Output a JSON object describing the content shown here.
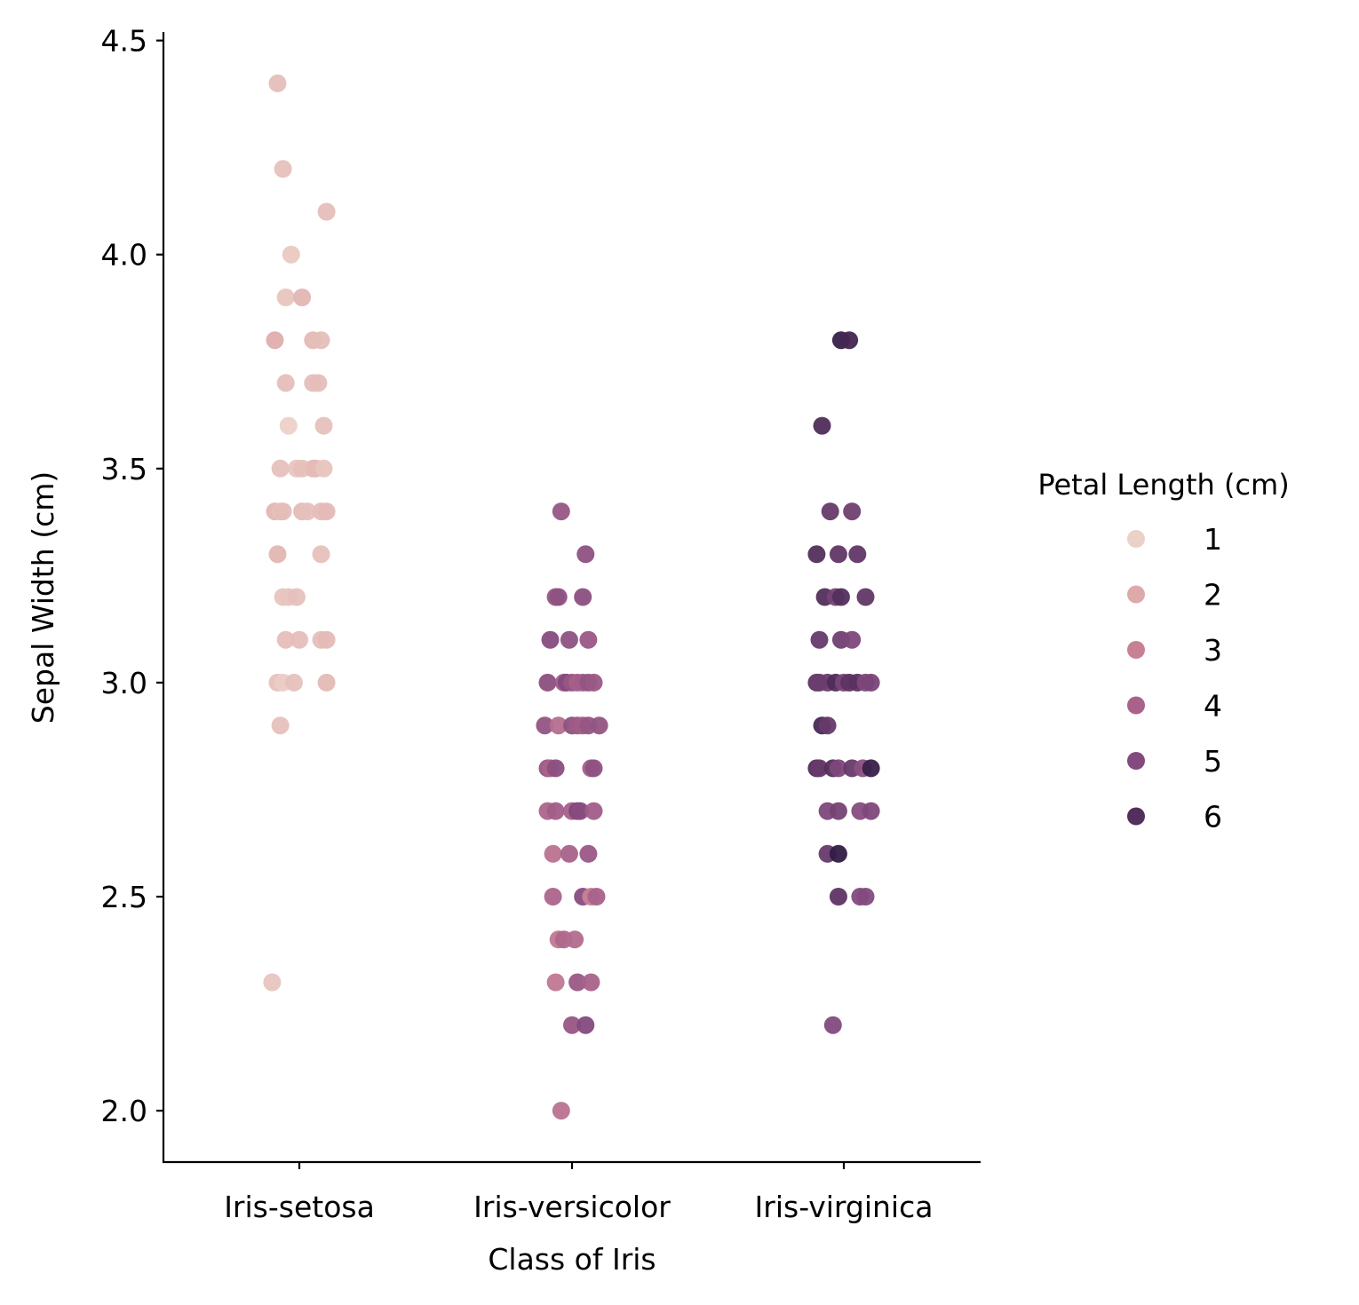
{
  "chart_data": {
    "type": "scatter",
    "subtype": "strip",
    "xlabel": "Class of Iris",
    "ylabel": "Sepal Width (cm)",
    "categories": [
      "Iris-setosa",
      "Iris-versicolor",
      "Iris-virginica"
    ],
    "ylim": [
      1.88,
      4.52
    ],
    "yticks": [
      2.0,
      2.5,
      3.0,
      3.5,
      4.0,
      4.5
    ],
    "ytick_labels": [
      "2.0",
      "2.5",
      "3.0",
      "3.5",
      "4.0",
      "4.5"
    ],
    "grid": false,
    "legend": {
      "title": "Petal Length (cm)",
      "placement": "right",
      "entries": [
        {
          "label": "1",
          "value": 1,
          "color": "#ecd1c8"
        },
        {
          "label": "2",
          "value": 2,
          "color": "#deaaa9"
        },
        {
          "label": "3",
          "value": 3,
          "color": "#c88194"
        },
        {
          "label": "4",
          "value": 4,
          "color": "#a9628a"
        },
        {
          "label": "5",
          "value": 5,
          "color": "#834a7e"
        },
        {
          "label": "6",
          "value": 6,
          "color": "#532f5c"
        }
      ]
    },
    "hue_range": [
      1.0,
      6.9
    ],
    "points": [
      {
        "category": "Iris-setosa",
        "y": 4.4,
        "hue": 1.5,
        "jitter": -0.08
      },
      {
        "category": "Iris-setosa",
        "y": 4.2,
        "hue": 1.4,
        "jitter": -0.06
      },
      {
        "category": "Iris-setosa",
        "y": 4.1,
        "hue": 1.5,
        "jitter": 0.1
      },
      {
        "category": "Iris-setosa",
        "y": 4.0,
        "hue": 1.2,
        "jitter": -0.03
      },
      {
        "category": "Iris-setosa",
        "y": 3.9,
        "hue": 1.3,
        "jitter": -0.05
      },
      {
        "category": "Iris-setosa",
        "y": 3.9,
        "hue": 1.7,
        "jitter": 0.01
      },
      {
        "category": "Iris-setosa",
        "y": 3.8,
        "hue": 1.9,
        "jitter": -0.09
      },
      {
        "category": "Iris-setosa",
        "y": 3.8,
        "hue": 1.6,
        "jitter": 0.05
      },
      {
        "category": "Iris-setosa",
        "y": 3.8,
        "hue": 1.5,
        "jitter": 0.08
      },
      {
        "category": "Iris-setosa",
        "y": 3.7,
        "hue": 1.5,
        "jitter": -0.05
      },
      {
        "category": "Iris-setosa",
        "y": 3.7,
        "hue": 1.5,
        "jitter": 0.05
      },
      {
        "category": "Iris-setosa",
        "y": 3.7,
        "hue": 1.5,
        "jitter": 0.07
      },
      {
        "category": "Iris-setosa",
        "y": 3.6,
        "hue": 1.0,
        "jitter": -0.04
      },
      {
        "category": "Iris-setosa",
        "y": 3.6,
        "hue": 1.4,
        "jitter": 0.09
      },
      {
        "category": "Iris-setosa",
        "y": 3.5,
        "hue": 1.4,
        "jitter": -0.07
      },
      {
        "category": "Iris-setosa",
        "y": 3.5,
        "hue": 1.3,
        "jitter": -0.01
      },
      {
        "category": "Iris-setosa",
        "y": 3.5,
        "hue": 1.4,
        "jitter": 0.01
      },
      {
        "category": "Iris-setosa",
        "y": 3.5,
        "hue": 1.5,
        "jitter": 0.05
      },
      {
        "category": "Iris-setosa",
        "y": 3.5,
        "hue": 1.6,
        "jitter": 0.06
      },
      {
        "category": "Iris-setosa",
        "y": 3.5,
        "hue": 1.3,
        "jitter": 0.09
      },
      {
        "category": "Iris-setosa",
        "y": 3.4,
        "hue": 1.7,
        "jitter": -0.09
      },
      {
        "category": "Iris-setosa",
        "y": 3.4,
        "hue": 1.4,
        "jitter": -0.07
      },
      {
        "category": "Iris-setosa",
        "y": 3.4,
        "hue": 1.5,
        "jitter": -0.06
      },
      {
        "category": "Iris-setosa",
        "y": 3.4,
        "hue": 1.6,
        "jitter": 0.01
      },
      {
        "category": "Iris-setosa",
        "y": 3.4,
        "hue": 1.4,
        "jitter": 0.03
      },
      {
        "category": "Iris-setosa",
        "y": 3.4,
        "hue": 1.5,
        "jitter": 0.08
      },
      {
        "category": "Iris-setosa",
        "y": 3.4,
        "hue": 1.6,
        "jitter": 0.1
      },
      {
        "category": "Iris-setosa",
        "y": 3.3,
        "hue": 1.7,
        "jitter": -0.08
      },
      {
        "category": "Iris-setosa",
        "y": 3.3,
        "hue": 1.4,
        "jitter": 0.08
      },
      {
        "category": "Iris-setosa",
        "y": 3.2,
        "hue": 1.3,
        "jitter": -0.06
      },
      {
        "category": "Iris-setosa",
        "y": 3.2,
        "hue": 1.3,
        "jitter": -0.04
      },
      {
        "category": "Iris-setosa",
        "y": 3.2,
        "hue": 1.4,
        "jitter": -0.01
      },
      {
        "category": "Iris-setosa",
        "y": 3.1,
        "hue": 1.5,
        "jitter": -0.05
      },
      {
        "category": "Iris-setosa",
        "y": 3.1,
        "hue": 1.5,
        "jitter": 0.0
      },
      {
        "category": "Iris-setosa",
        "y": 3.1,
        "hue": 1.5,
        "jitter": 0.08
      },
      {
        "category": "Iris-setosa",
        "y": 3.1,
        "hue": 1.6,
        "jitter": 0.1
      },
      {
        "category": "Iris-setosa",
        "y": 3.0,
        "hue": 1.4,
        "jitter": -0.08
      },
      {
        "category": "Iris-setosa",
        "y": 3.0,
        "hue": 1.1,
        "jitter": -0.06
      },
      {
        "category": "Iris-setosa",
        "y": 3.0,
        "hue": 1.4,
        "jitter": -0.02
      },
      {
        "category": "Iris-setosa",
        "y": 3.0,
        "hue": 1.6,
        "jitter": 0.1
      },
      {
        "category": "Iris-setosa",
        "y": 2.9,
        "hue": 1.4,
        "jitter": -0.07
      },
      {
        "category": "Iris-setosa",
        "y": 2.3,
        "hue": 1.3,
        "jitter": -0.1
      },
      {
        "category": "Iris-versicolor",
        "y": 3.4,
        "hue": 4.5,
        "jitter": -0.04
      },
      {
        "category": "Iris-versicolor",
        "y": 3.3,
        "hue": 4.7,
        "jitter": 0.05
      },
      {
        "category": "Iris-versicolor",
        "y": 3.2,
        "hue": 4.5,
        "jitter": -0.06
      },
      {
        "category": "Iris-versicolor",
        "y": 3.2,
        "hue": 4.7,
        "jitter": -0.05
      },
      {
        "category": "Iris-versicolor",
        "y": 3.2,
        "hue": 4.8,
        "jitter": 0.04
      },
      {
        "category": "Iris-versicolor",
        "y": 3.1,
        "hue": 4.9,
        "jitter": -0.08
      },
      {
        "category": "Iris-versicolor",
        "y": 3.1,
        "hue": 4.7,
        "jitter": -0.01
      },
      {
        "category": "Iris-versicolor",
        "y": 3.1,
        "hue": 4.4,
        "jitter": 0.06
      },
      {
        "category": "Iris-versicolor",
        "y": 3.0,
        "hue": 4.8,
        "jitter": -0.09
      },
      {
        "category": "Iris-versicolor",
        "y": 3.0,
        "hue": 4.2,
        "jitter": -0.03
      },
      {
        "category": "Iris-versicolor",
        "y": 3.0,
        "hue": 5.0,
        "jitter": -0.02
      },
      {
        "category": "Iris-versicolor",
        "y": 3.0,
        "hue": 4.5,
        "jitter": 0.0
      },
      {
        "category": "Iris-versicolor",
        "y": 3.0,
        "hue": 4.1,
        "jitter": 0.02
      },
      {
        "category": "Iris-versicolor",
        "y": 3.0,
        "hue": 4.2,
        "jitter": 0.04
      },
      {
        "category": "Iris-versicolor",
        "y": 3.0,
        "hue": 4.6,
        "jitter": 0.06
      },
      {
        "category": "Iris-versicolor",
        "y": 3.0,
        "hue": 4.4,
        "jitter": 0.08
      },
      {
        "category": "Iris-versicolor",
        "y": 2.9,
        "hue": 4.6,
        "jitter": -0.1
      },
      {
        "category": "Iris-versicolor",
        "y": 2.9,
        "hue": 3.6,
        "jitter": -0.05
      },
      {
        "category": "Iris-versicolor",
        "y": 2.9,
        "hue": 4.7,
        "jitter": 0.0
      },
      {
        "category": "Iris-versicolor",
        "y": 2.9,
        "hue": 4.3,
        "jitter": 0.02
      },
      {
        "category": "Iris-versicolor",
        "y": 2.9,
        "hue": 4.2,
        "jitter": 0.04
      },
      {
        "category": "Iris-versicolor",
        "y": 2.9,
        "hue": 4.5,
        "jitter": 0.06
      },
      {
        "category": "Iris-versicolor",
        "y": 2.9,
        "hue": 4.6,
        "jitter": 0.1
      },
      {
        "category": "Iris-versicolor",
        "y": 2.8,
        "hue": 4.6,
        "jitter": -0.09
      },
      {
        "category": "Iris-versicolor",
        "y": 2.8,
        "hue": 4.0,
        "jitter": -0.08
      },
      {
        "category": "Iris-versicolor",
        "y": 2.8,
        "hue": 4.8,
        "jitter": -0.06
      },
      {
        "category": "Iris-versicolor",
        "y": 2.8,
        "hue": 4.1,
        "jitter": 0.07
      },
      {
        "category": "Iris-versicolor",
        "y": 2.8,
        "hue": 4.7,
        "jitter": 0.08
      },
      {
        "category": "Iris-versicolor",
        "y": 2.7,
        "hue": 3.9,
        "jitter": -0.09
      },
      {
        "category": "Iris-versicolor",
        "y": 2.7,
        "hue": 4.2,
        "jitter": -0.06
      },
      {
        "category": "Iris-versicolor",
        "y": 2.7,
        "hue": 4.1,
        "jitter": 0.0
      },
      {
        "category": "Iris-versicolor",
        "y": 2.7,
        "hue": 5.1,
        "jitter": 0.02
      },
      {
        "category": "Iris-versicolor",
        "y": 2.7,
        "hue": 4.9,
        "jitter": 0.03
      },
      {
        "category": "Iris-versicolor",
        "y": 2.7,
        "hue": 4.2,
        "jitter": 0.08
      },
      {
        "category": "Iris-versicolor",
        "y": 2.6,
        "hue": 3.5,
        "jitter": -0.07
      },
      {
        "category": "Iris-versicolor",
        "y": 2.6,
        "hue": 4.0,
        "jitter": -0.01
      },
      {
        "category": "Iris-versicolor",
        "y": 2.6,
        "hue": 4.4,
        "jitter": 0.06
      },
      {
        "category": "Iris-versicolor",
        "y": 2.5,
        "hue": 3.9,
        "jitter": -0.07
      },
      {
        "category": "Iris-versicolor",
        "y": 2.5,
        "hue": 4.9,
        "jitter": 0.04
      },
      {
        "category": "Iris-versicolor",
        "y": 2.5,
        "hue": 3.0,
        "jitter": 0.07
      },
      {
        "category": "Iris-versicolor",
        "y": 2.5,
        "hue": 4.0,
        "jitter": 0.09
      },
      {
        "category": "Iris-versicolor",
        "y": 2.4,
        "hue": 3.3,
        "jitter": -0.05
      },
      {
        "category": "Iris-versicolor",
        "y": 2.4,
        "hue": 3.8,
        "jitter": -0.03
      },
      {
        "category": "Iris-versicolor",
        "y": 2.4,
        "hue": 3.7,
        "jitter": 0.01
      },
      {
        "category": "Iris-versicolor",
        "y": 2.3,
        "hue": 3.3,
        "jitter": -0.06
      },
      {
        "category": "Iris-versicolor",
        "y": 2.3,
        "hue": 4.4,
        "jitter": 0.02
      },
      {
        "category": "Iris-versicolor",
        "y": 2.3,
        "hue": 4.0,
        "jitter": 0.07
      },
      {
        "category": "Iris-versicolor",
        "y": 2.2,
        "hue": 4.5,
        "jitter": 0.0
      },
      {
        "category": "Iris-versicolor",
        "y": 2.2,
        "hue": 5.0,
        "jitter": 0.05
      },
      {
        "category": "Iris-versicolor",
        "y": 2.0,
        "hue": 3.5,
        "jitter": -0.04
      },
      {
        "category": "Iris-virginica",
        "y": 3.8,
        "hue": 6.7,
        "jitter": -0.01
      },
      {
        "category": "Iris-virginica",
        "y": 3.8,
        "hue": 6.4,
        "jitter": 0.02
      },
      {
        "category": "Iris-virginica",
        "y": 3.6,
        "hue": 6.1,
        "jitter": -0.08
      },
      {
        "category": "Iris-virginica",
        "y": 3.4,
        "hue": 5.6,
        "jitter": -0.05
      },
      {
        "category": "Iris-virginica",
        "y": 3.4,
        "hue": 5.4,
        "jitter": 0.03
      },
      {
        "category": "Iris-virginica",
        "y": 3.3,
        "hue": 6.0,
        "jitter": -0.1
      },
      {
        "category": "Iris-virginica",
        "y": 3.3,
        "hue": 5.7,
        "jitter": -0.02
      },
      {
        "category": "Iris-virginica",
        "y": 3.3,
        "hue": 5.7,
        "jitter": 0.05
      },
      {
        "category": "Iris-virginica",
        "y": 3.2,
        "hue": 6.0,
        "jitter": -0.07
      },
      {
        "category": "Iris-virginica",
        "y": 3.2,
        "hue": 5.3,
        "jitter": -0.03
      },
      {
        "category": "Iris-virginica",
        "y": 3.2,
        "hue": 6.0,
        "jitter": -0.01
      },
      {
        "category": "Iris-virginica",
        "y": 3.2,
        "hue": 5.7,
        "jitter": 0.08
      },
      {
        "category": "Iris-virginica",
        "y": 3.1,
        "hue": 5.6,
        "jitter": -0.09
      },
      {
        "category": "Iris-virginica",
        "y": 3.1,
        "hue": 5.4,
        "jitter": -0.01
      },
      {
        "category": "Iris-virginica",
        "y": 3.1,
        "hue": 5.1,
        "jitter": 0.03
      },
      {
        "category": "Iris-virginica",
        "y": 3.0,
        "hue": 5.8,
        "jitter": -0.1
      },
      {
        "category": "Iris-virginica",
        "y": 3.0,
        "hue": 5.5,
        "jitter": -0.09
      },
      {
        "category": "Iris-virginica",
        "y": 3.0,
        "hue": 5.5,
        "jitter": -0.06
      },
      {
        "category": "Iris-virginica",
        "y": 3.0,
        "hue": 6.1,
        "jitter": -0.03
      },
      {
        "category": "Iris-virginica",
        "y": 3.0,
        "hue": 5.2,
        "jitter": 0.0
      },
      {
        "category": "Iris-virginica",
        "y": 3.0,
        "hue": 5.8,
        "jitter": 0.02
      },
      {
        "category": "Iris-virginica",
        "y": 3.0,
        "hue": 5.9,
        "jitter": 0.05
      },
      {
        "category": "Iris-virginica",
        "y": 3.0,
        "hue": 5.1,
        "jitter": 0.08
      },
      {
        "category": "Iris-virginica",
        "y": 3.0,
        "hue": 5.2,
        "jitter": 0.1
      },
      {
        "category": "Iris-virginica",
        "y": 2.9,
        "hue": 6.3,
        "jitter": -0.08
      },
      {
        "category": "Iris-virginica",
        "y": 2.9,
        "hue": 5.6,
        "jitter": -0.06
      },
      {
        "category": "Iris-virginica",
        "y": 2.8,
        "hue": 6.1,
        "jitter": -0.1
      },
      {
        "category": "Iris-virginica",
        "y": 2.8,
        "hue": 5.6,
        "jitter": -0.09
      },
      {
        "category": "Iris-virginica",
        "y": 2.8,
        "hue": 6.0,
        "jitter": -0.04
      },
      {
        "category": "Iris-virginica",
        "y": 2.8,
        "hue": 5.1,
        "jitter": -0.02
      },
      {
        "category": "Iris-virginica",
        "y": 2.8,
        "hue": 5.6,
        "jitter": 0.03
      },
      {
        "category": "Iris-virginica",
        "y": 2.8,
        "hue": 4.8,
        "jitter": 0.07
      },
      {
        "category": "Iris-virginica",
        "y": 2.8,
        "hue": 6.7,
        "jitter": 0.1
      },
      {
        "category": "Iris-virginica",
        "y": 2.7,
        "hue": 5.1,
        "jitter": -0.06
      },
      {
        "category": "Iris-virginica",
        "y": 2.7,
        "hue": 5.3,
        "jitter": -0.02
      },
      {
        "category": "Iris-virginica",
        "y": 2.7,
        "hue": 4.9,
        "jitter": 0.06
      },
      {
        "category": "Iris-virginica",
        "y": 2.7,
        "hue": 5.1,
        "jitter": 0.1
      },
      {
        "category": "Iris-virginica",
        "y": 2.6,
        "hue": 5.6,
        "jitter": -0.06
      },
      {
        "category": "Iris-virginica",
        "y": 2.6,
        "hue": 6.9,
        "jitter": -0.02
      },
      {
        "category": "Iris-virginica",
        "y": 2.5,
        "hue": 5.8,
        "jitter": -0.02
      },
      {
        "category": "Iris-virginica",
        "y": 2.5,
        "hue": 5.0,
        "jitter": 0.06
      },
      {
        "category": "Iris-virginica",
        "y": 2.5,
        "hue": 5.0,
        "jitter": 0.08
      },
      {
        "category": "Iris-virginica",
        "y": 2.2,
        "hue": 5.0,
        "jitter": -0.04
      }
    ]
  }
}
